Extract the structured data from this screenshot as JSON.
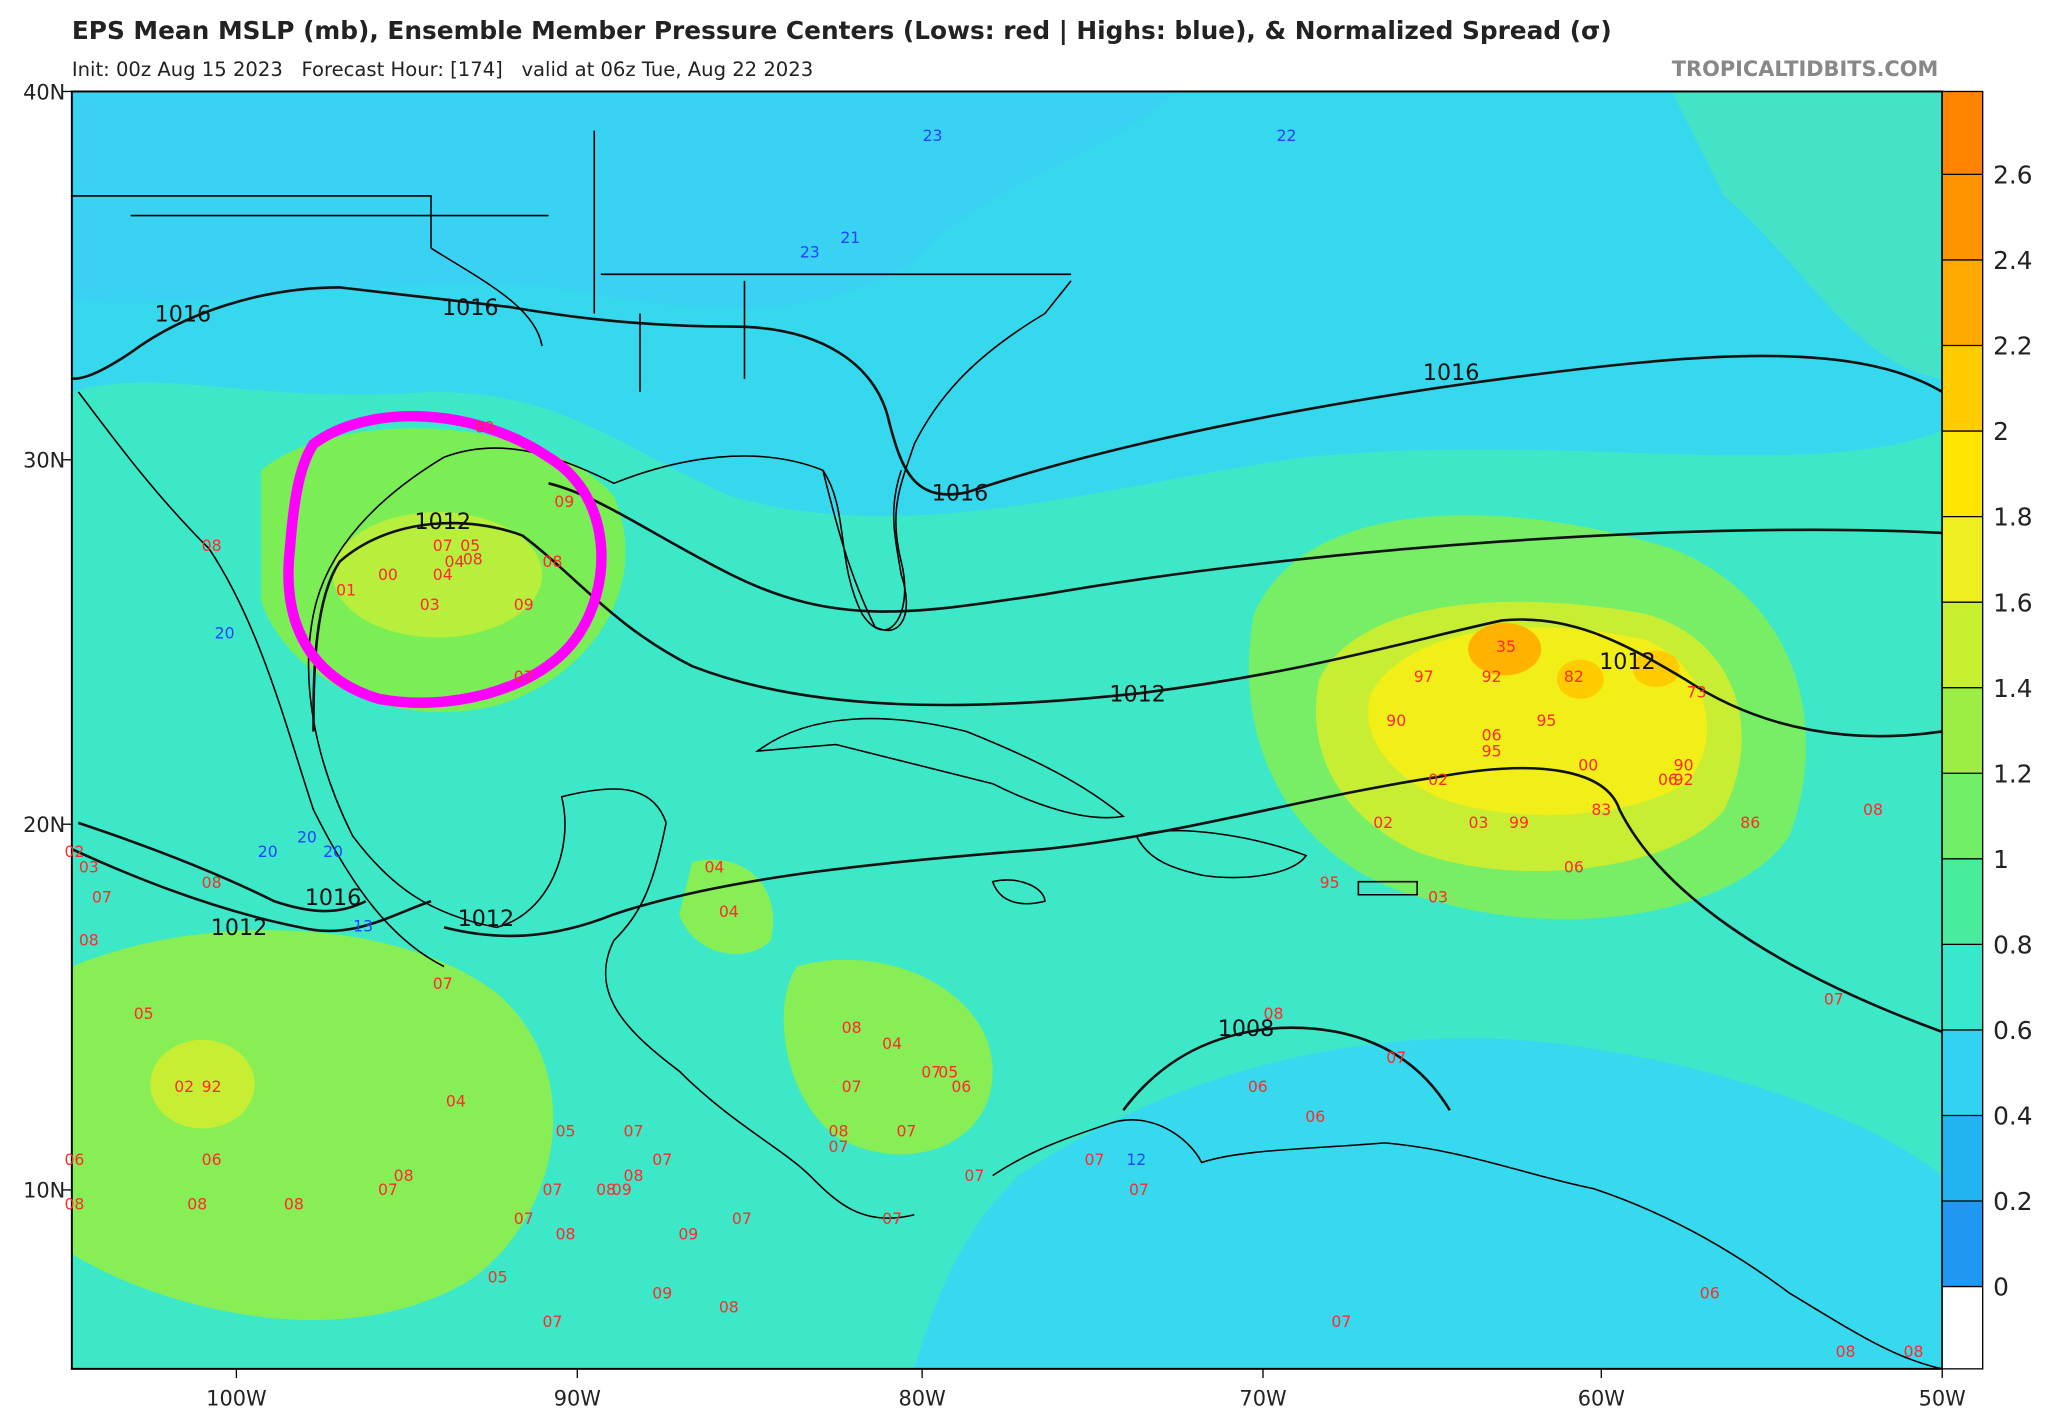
{
  "header": {
    "title": "EPS Mean MSLP (mb), Ensemble Member Pressure Centers (Lows: red | Highs: blue), & Normalized Spread (σ)",
    "subtitle": "Init: 00z Aug 15 2023   Forecast Hour: [174]   valid at 06z Tue, Aug 22 2023",
    "site": "TROPICALTIDBITS.COM"
  },
  "latitude_labels": [
    "40N",
    "30N",
    "20N",
    "10N"
  ],
  "longitude_labels": [
    "100W",
    "90W",
    "80W",
    "70W",
    "60W",
    "50W"
  ],
  "colorbar": {
    "ticks": [
      0,
      0.2,
      0.4,
      0.6,
      0.8,
      1,
      1.2,
      1.4,
      1.6,
      1.8,
      2,
      2.2,
      2.4,
      2.6
    ]
  },
  "isobar_labels": [
    "1016",
    "1016",
    "1016",
    "1016",
    "1012",
    "1012",
    "1012",
    "1016",
    "1012",
    "1012",
    "1008"
  ],
  "low_centers": [
    "08",
    "07",
    "05",
    "04",
    "08",
    "00",
    "04",
    "01",
    "03",
    "09",
    "08",
    "09",
    "09",
    "07",
    "02",
    "03",
    "07",
    "08",
    "08",
    "05",
    "02",
    "92",
    "06",
    "06",
    "08",
    "08",
    "08",
    "07",
    "08",
    "04",
    "07",
    "05",
    "07",
    "08",
    "07",
    "07",
    "08",
    "09",
    "07",
    "08",
    "09",
    "05",
    "09",
    "08",
    "07",
    "04",
    "04",
    "08",
    "04",
    "07",
    "05",
    "06",
    "07",
    "08",
    "07",
    "07",
    "07",
    "07",
    "07",
    "07",
    "07",
    "06",
    "06",
    "07",
    "08",
    "95",
    "03",
    "07",
    "06",
    "08",
    "08",
    "08",
    "07",
    "35",
    "97",
    "92",
    "82",
    "73",
    "90",
    "95",
    "06",
    "95",
    "00",
    "90",
    "06",
    "92",
    "02",
    "83",
    "86",
    "02",
    "03",
    "99",
    "06"
  ],
  "high_centers": [
    "22",
    "23",
    "23",
    "21",
    "20",
    "20",
    "20",
    "20",
    "13",
    "12"
  ]
}
